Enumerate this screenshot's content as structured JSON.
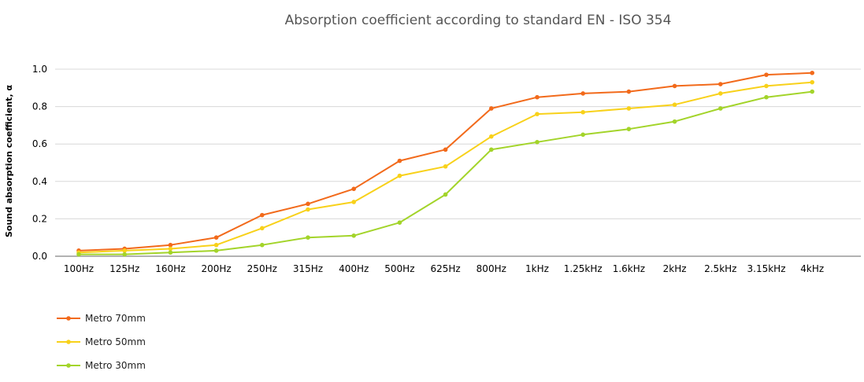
{
  "chart_data": {
    "type": "line",
    "title": "Absorption coefficient according to standard EN - ISO 354",
    "xlabel": "",
    "ylabel": "Sound absorption coefficient, α",
    "categories": [
      "100Hz",
      "125Hz",
      "160Hz",
      "200Hz",
      "250Hz",
      "315Hz",
      "400Hz",
      "500Hz",
      "625Hz",
      "800Hz",
      "1kHz",
      "1.25kHz",
      "1.6kHz",
      "2kHz",
      "2.5kHz",
      "3.15kHz",
      "4kHz"
    ],
    "y_ticks": [
      "0.0",
      "0.2",
      "0.4",
      "0.6",
      "0.8",
      "1.0"
    ],
    "ylim": [
      0,
      1.0
    ],
    "grid": "horizontal",
    "legend_position": "bottom-left",
    "series": [
      {
        "name": "Metro 70mm",
        "color": "#f26a1b",
        "values": [
          0.03,
          0.04,
          0.06,
          0.1,
          0.22,
          0.28,
          0.36,
          0.51,
          0.57,
          0.79,
          0.85,
          0.87,
          0.88,
          0.91,
          0.92,
          0.97,
          0.98
        ]
      },
      {
        "name": "Metro 50mm",
        "color": "#f8d11a",
        "values": [
          0.02,
          0.03,
          0.04,
          0.06,
          0.15,
          0.25,
          0.29,
          0.43,
          0.48,
          0.64,
          0.76,
          0.77,
          0.79,
          0.81,
          0.87,
          0.91,
          0.93
        ]
      },
      {
        "name": "Metro 30mm",
        "color": "#a3d42a",
        "values": [
          0.01,
          0.01,
          0.02,
          0.03,
          0.06,
          0.1,
          0.11,
          0.18,
          0.33,
          0.57,
          0.61,
          0.65,
          0.68,
          0.72,
          0.79,
          0.85,
          0.88
        ]
      }
    ]
  }
}
